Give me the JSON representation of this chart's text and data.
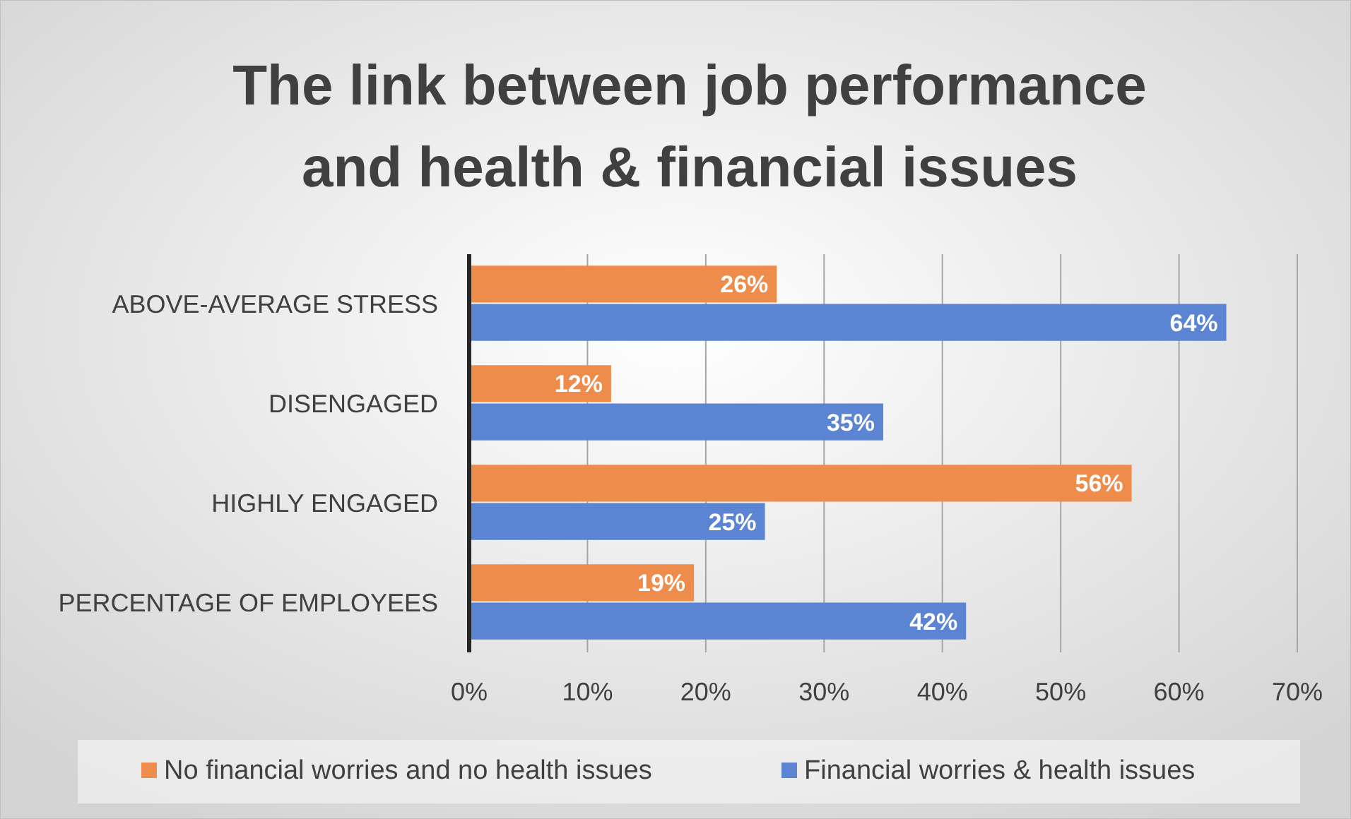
{
  "chart_data": {
    "type": "bar",
    "orientation": "horizontal",
    "title": "The link between job performance and health & financial issues",
    "categories": [
      "ABOVE-AVERAGE STRESS",
      "DISENGAGED",
      "HIGHLY ENGAGED",
      "PERCENTAGE OF EMPLOYEES"
    ],
    "series": [
      {
        "name": "No financial worries and no health issues",
        "color": "#ee8c4c",
        "values": [
          26,
          12,
          56,
          19
        ],
        "value_labels": [
          "26%",
          "12%",
          "56%",
          "19%"
        ]
      },
      {
        "name": "Financial worries & health issues",
        "color": "#5b84d2",
        "values": [
          64,
          35,
          25,
          42
        ],
        "value_labels": [
          "64%",
          "35%",
          "25%",
          "42%"
        ]
      }
    ],
    "xlim": [
      0,
      70
    ],
    "xticks": [
      {
        "value": 0,
        "label": "0%"
      },
      {
        "value": 10,
        "label": "10%"
      },
      {
        "value": 20,
        "label": "20%"
      },
      {
        "value": 30,
        "label": "30%"
      },
      {
        "value": 40,
        "label": "40%"
      },
      {
        "value": 50,
        "label": "50%"
      },
      {
        "value": 60,
        "label": "60%"
      },
      {
        "value": 70,
        "label": "70%"
      }
    ],
    "grid": "x",
    "legend": "bottom"
  }
}
